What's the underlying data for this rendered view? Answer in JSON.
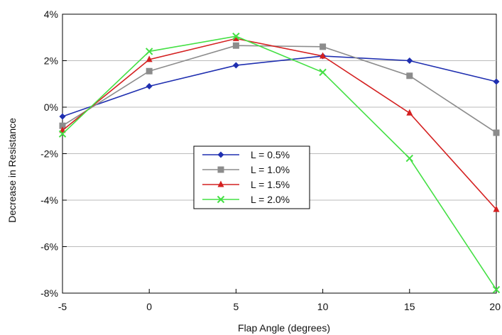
{
  "chart_data": {
    "type": "line",
    "xlabel": "Flap Angle (degrees)",
    "ylabel": "Decrease in Resistance",
    "x": [
      -5,
      0,
      5,
      10,
      15,
      20
    ],
    "x_ticks": [
      -5,
      0,
      5,
      10,
      15,
      20
    ],
    "y_ticks": [
      4,
      2,
      0,
      -2,
      -4,
      -6,
      -8
    ],
    "y_tick_labels": [
      "4%",
      "2%",
      "0%",
      "-2%",
      "-4%",
      "-6%",
      "-8%"
    ],
    "xlim": [
      -5,
      20
    ],
    "ylim": [
      -8,
      4
    ],
    "grid": "horizontal",
    "legend_position": "center-left",
    "series": [
      {
        "name": "L = 0.5%",
        "color": "#1f2fb0",
        "marker": "diamond",
        "values": [
          -0.4,
          0.9,
          1.8,
          2.2,
          2.0,
          1.1
        ]
      },
      {
        "name": "L = 1.0%",
        "color": "#8c8c8c",
        "marker": "square",
        "values": [
          -0.8,
          1.55,
          2.65,
          2.6,
          1.35,
          -1.1
        ]
      },
      {
        "name": "L = 1.5%",
        "color": "#d42020",
        "marker": "triangle",
        "values": [
          -1.0,
          2.05,
          2.95,
          2.2,
          -0.25,
          -4.4
        ]
      },
      {
        "name": "L = 2.0%",
        "color": "#44e044",
        "marker": "x",
        "values": [
          -1.15,
          2.4,
          3.05,
          1.5,
          -2.2,
          -7.85
        ]
      }
    ]
  }
}
